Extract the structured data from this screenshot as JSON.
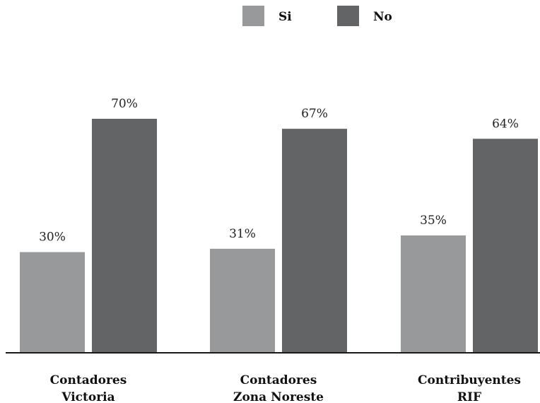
{
  "chart_data": {
    "type": "bar",
    "categories": [
      [
        "Contadores",
        "Victoria"
      ],
      [
        "Contadores",
        "Zona Noreste"
      ],
      [
        "Contribuyentes",
        "RIF"
      ]
    ],
    "series": [
      {
        "name": "Si",
        "color": "#98999b",
        "values": [
          30,
          31,
          35
        ],
        "labels": [
          "30%",
          "31%",
          "35%"
        ]
      },
      {
        "name": "No",
        "color": "#636466",
        "values": [
          70,
          67,
          64
        ],
        "labels": [
          "70%",
          "67%",
          "64%"
        ]
      }
    ],
    "title": "",
    "xlabel": "",
    "ylabel": "",
    "ylim": [
      0,
      75
    ],
    "grid": false,
    "legend": "top-center",
    "axis_color": "#1a1a1a"
  }
}
